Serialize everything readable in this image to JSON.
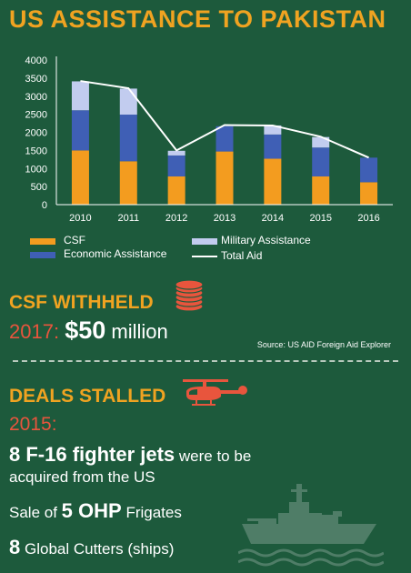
{
  "title": "US ASSISTANCE TO PAKISTAN",
  "colors": {
    "background": "#1d5a3c",
    "csf": "#f39c1f",
    "economic": "#3f5fb5",
    "military": "#c2ccef",
    "total_line": "#ffffff",
    "heading": "#f0a321",
    "year_red": "#e8553d",
    "icon_red": "#e8553d",
    "ship": "#4f7d67"
  },
  "chart_data": {
    "type": "bar",
    "stacked": true,
    "categories": [
      "2010",
      "2011",
      "2012",
      "2013",
      "2014",
      "2015",
      "2016"
    ],
    "series": [
      {
        "name": "CSF",
        "values": [
          1500,
          1200,
          780,
          1470,
          1270,
          780,
          620
        ]
      },
      {
        "name": "Economic Assistance",
        "values": [
          1110,
          1290,
          580,
          700,
          670,
          800,
          680
        ]
      },
      {
        "name": "Military Assistance",
        "values": [
          800,
          720,
          130,
          0,
          250,
          290,
          0
        ]
      }
    ],
    "line": {
      "name": "Total Aid",
      "values": [
        3420,
        3220,
        1500,
        2200,
        2190,
        1880,
        1300
      ]
    },
    "ylim": [
      0,
      4000
    ],
    "yticks": [
      "0",
      "500",
      "1000",
      "1500",
      "2000",
      "2500",
      "3000",
      "3500",
      "4000"
    ],
    "grid": false
  },
  "legend": {
    "csf": "CSF",
    "economic": "Economic Assistance",
    "military": "Military Assistance",
    "total": "Total Aid"
  },
  "csf_withheld": {
    "heading": "CSF WITHHELD",
    "icon": "coin-stack-icon",
    "year": "2017:",
    "amount": "$50",
    "unit": "million",
    "source": "Source: US AID Foreign Aid Explorer"
  },
  "deals_stalled": {
    "heading": "DEALS STALLED",
    "icon": "helicopter-icon",
    "ship_icon": "warship-icon",
    "year": "2015:",
    "deal1_big": "8 F-16 fighter jets",
    "deal1_rest": "were to be",
    "deal1_line2": "acquired from the US",
    "deal2_prefix": "Sale of",
    "deal2_big": "5 OHP",
    "deal2_rest": "Frigates",
    "deal3_big": "8",
    "deal3_rest": "Global Cutters (ships)"
  }
}
